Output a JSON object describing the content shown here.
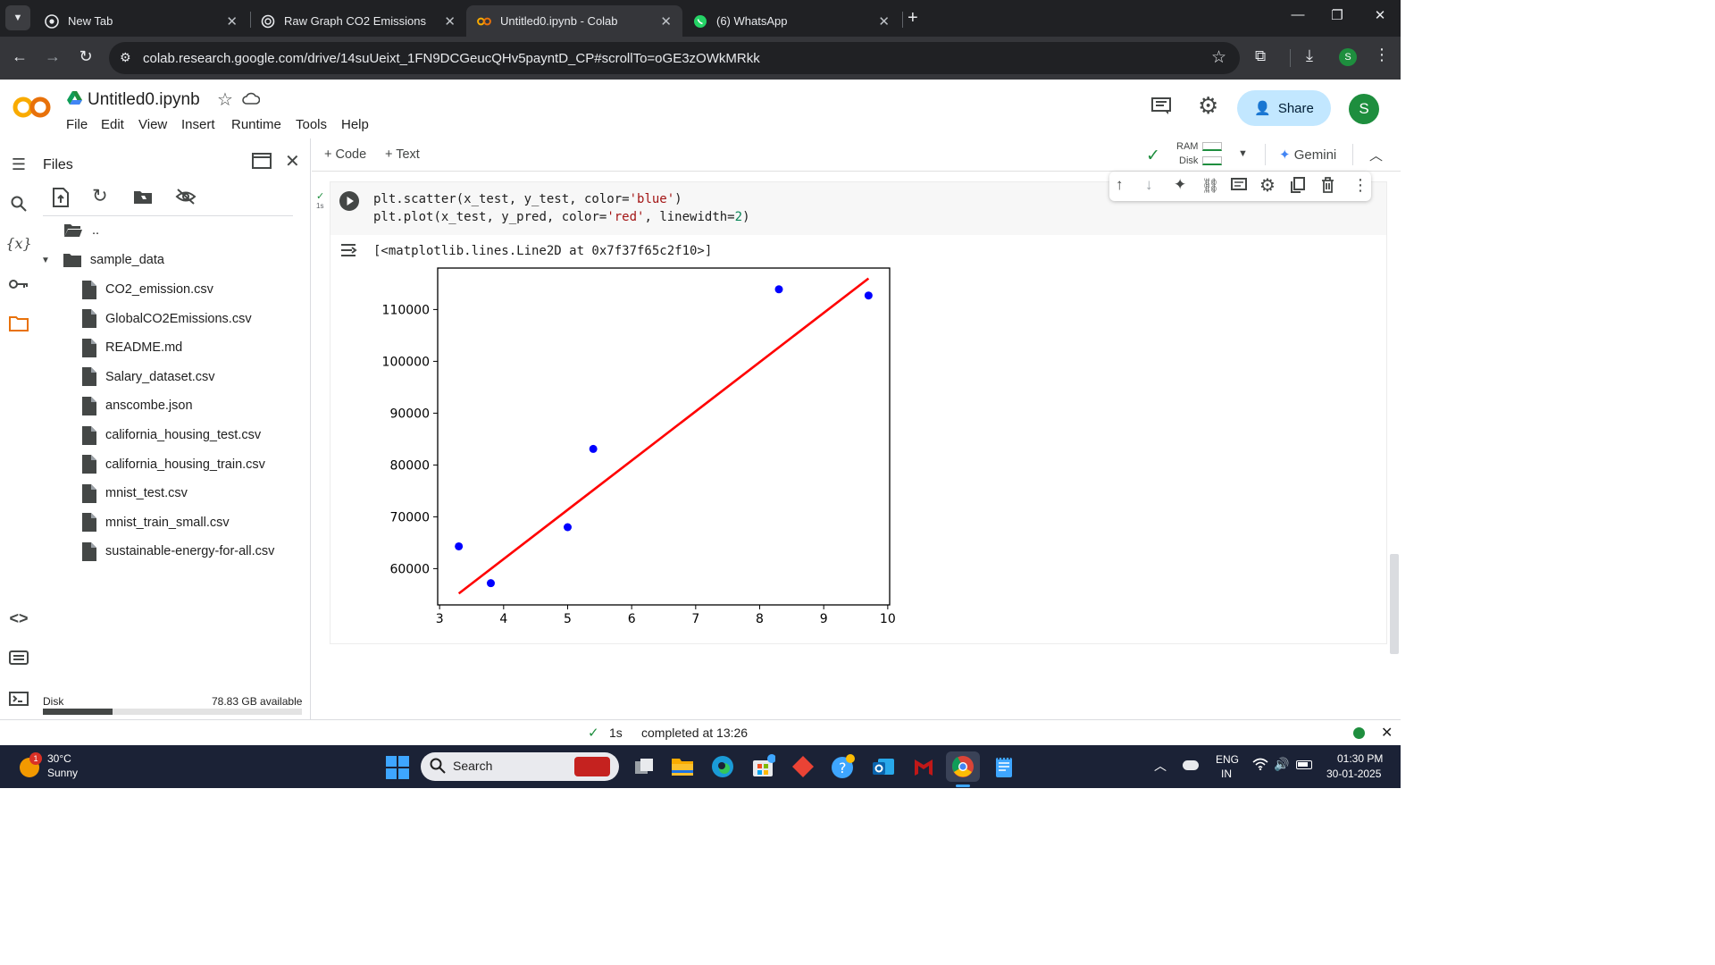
{
  "browser": {
    "tabs": [
      {
        "label": "New Tab"
      },
      {
        "label": "Raw Graph CO2 Emissions"
      },
      {
        "label": "Untitled0.ipynb - Colab"
      },
      {
        "label": "(6) WhatsApp"
      }
    ],
    "url": "colab.research.google.com/drive/14suUeixt_1FN9DCGeucQHv5payntD_CP#scrollTo=oGE3zOWkMRkk",
    "profile_initial": "S"
  },
  "colab": {
    "logo": "CO",
    "notebook_title": "Untitled0.ipynb",
    "menu": [
      "File",
      "Edit",
      "View",
      "Insert",
      "Runtime",
      "Tools",
      "Help"
    ],
    "share_label": "Share",
    "avatar_initial": "S",
    "add_code_label": "+ Code",
    "add_text_label": "+ Text",
    "ram_label": "RAM",
    "disk_label": "Disk",
    "gemini_label": "Gemini"
  },
  "files_panel": {
    "title": "Files",
    "parent_dir": "..",
    "folder": "sample_data",
    "files": [
      "CO2_emission.csv",
      "GlobalCO2Emissions.csv",
      "README.md",
      "Salary_dataset.csv",
      "anscombe.json",
      "california_housing_test.csv",
      "california_housing_train.csv",
      "mnist_test.csv",
      "mnist_train_small.csv",
      "sustainable-energy-for-all.csv"
    ],
    "disk_label": "Disk",
    "disk_available": "78.83 GB available",
    "disk_used_fraction": 0.27
  },
  "cell": {
    "exec_time": "1s",
    "code_line1": {
      "fn": "plt.scatter",
      "args": "(x_test, y_test, color=",
      "str": "'blue'",
      "end": ")"
    },
    "code_line2": {
      "fn": "plt.plot",
      "args": "(x_test, y_pred, color=",
      "str": "'red'",
      "mid": ", linewidth=",
      "num": "2",
      "end": ")"
    },
    "output_repr": "[<matplotlib.lines.Line2D at 0x7f37f65c2f10>]"
  },
  "chart_data": {
    "type": "scatter",
    "title": "",
    "xlabel": "",
    "ylabel": "",
    "xlim": [
      2.97,
      10.03
    ],
    "ylim": [
      53000,
      118000
    ],
    "xticks": [
      3,
      4,
      5,
      6,
      7,
      8,
      9,
      10
    ],
    "yticks": [
      60000,
      70000,
      80000,
      90000,
      100000,
      110000
    ],
    "grid": false,
    "series": [
      {
        "kind": "scatter",
        "color": "#0000ff",
        "points": [
          {
            "x": 3.3,
            "y": 64300
          },
          {
            "x": 3.8,
            "y": 57200
          },
          {
            "x": 5.0,
            "y": 68000
          },
          {
            "x": 5.4,
            "y": 83100
          },
          {
            "x": 8.3,
            "y": 113900
          },
          {
            "x": 9.7,
            "y": 112700
          }
        ]
      },
      {
        "kind": "line",
        "color": "#ff0000",
        "points": [
          {
            "x": 3.3,
            "y": 55200
          },
          {
            "x": 9.7,
            "y": 116000
          }
        ]
      }
    ]
  },
  "status": {
    "exec_time": "1s",
    "completed_text": "completed at 13:26"
  },
  "taskbar": {
    "weather_temp": "30°C",
    "weather_desc": "Sunny",
    "weather_badge": "1",
    "search_placeholder": "Search",
    "lang_line1": "ENG",
    "lang_line2": "IN",
    "time": "01:30 PM",
    "date": "30-01-2025"
  }
}
